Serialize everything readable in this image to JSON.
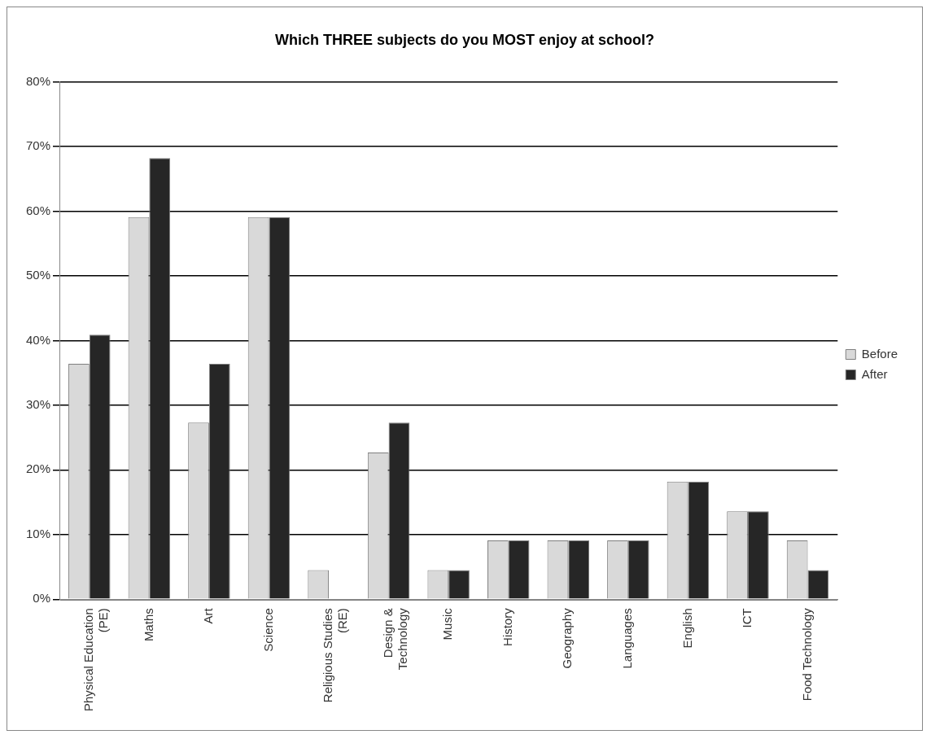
{
  "chart_data": {
    "type": "bar",
    "title": "Which THREE subjects do you MOST enjoy at school?",
    "categories": [
      "Physical Education (PE)",
      "Maths",
      "Art",
      "Science",
      "Religious Studies (RE)",
      "Design & Technology",
      "Music",
      "History",
      "Geography",
      "Languages",
      "English",
      "ICT",
      "Food Technology"
    ],
    "series": [
      {
        "name": "Before",
        "color": "#d9d9d9",
        "values": [
          36.4,
          59.1,
          27.3,
          59.1,
          4.5,
          22.7,
          4.5,
          9.1,
          9.1,
          9.1,
          18.2,
          13.6,
          9.1
        ]
      },
      {
        "name": "After",
        "color": "#262626",
        "values": [
          40.9,
          68.2,
          36.4,
          59.1,
          0,
          27.3,
          4.5,
          9.1,
          9.1,
          9.1,
          18.2,
          13.6,
          4.5
        ]
      }
    ],
    "ylim": [
      0,
      80
    ],
    "yticks": [
      {
        "value": 0,
        "label": "0%"
      },
      {
        "value": 10,
        "label": "10%"
      },
      {
        "value": 20,
        "label": "20%"
      },
      {
        "value": 30,
        "label": "30%"
      },
      {
        "value": 40,
        "label": "40%"
      },
      {
        "value": 50,
        "label": "50%"
      },
      {
        "value": 60,
        "label": "60%"
      },
      {
        "value": 70,
        "label": "70%"
      },
      {
        "value": 80,
        "label": "80%"
      }
    ],
    "grid": "y",
    "legend": "right"
  }
}
